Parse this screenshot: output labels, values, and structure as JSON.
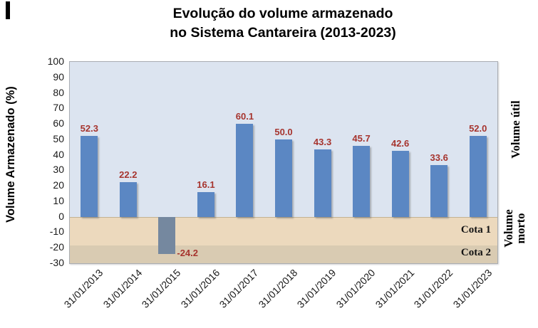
{
  "title": {
    "line1": "Evolução do volume armazenado",
    "line2": "no Sistema Cantareira (2013-2023)"
  },
  "y_axis": {
    "title": "Volume Armazenado (%)"
  },
  "right_labels": {
    "positive": "Volume útil",
    "negative_line1": "Volume",
    "negative_line2": "morto"
  },
  "chart_data": {
    "type": "bar",
    "title": "Evolução do volume armazenado no Sistema Cantareira (2013-2023)",
    "categories": [
      "31/01/2013",
      "31/01/2014",
      "31/01/2015",
      "31/01/2016",
      "31/01/2017",
      "31/01/2018",
      "31/01/2019",
      "31/01/2020",
      "31/01/2021",
      "31/01/2022",
      "31/01/2023"
    ],
    "values": [
      52.3,
      22.2,
      -24.2,
      16.1,
      60.1,
      50.0,
      43.3,
      45.7,
      42.6,
      33.6,
      52.0
    ],
    "xlabel": "",
    "ylabel": "Volume Armazenado (%)",
    "ylim": [
      -30,
      100
    ],
    "y_ticks": [
      100,
      90,
      80,
      70,
      60,
      50,
      40,
      30,
      20,
      10,
      0,
      -10,
      -20,
      -30
    ],
    "grid": false,
    "legend": false,
    "data_label_decimals": 1,
    "bands": [
      {
        "label": "Cota 1",
        "from": 0,
        "to": -18.5,
        "color": "#ecd9bd"
      },
      {
        "label": "Cota 2",
        "from": -18.5,
        "to": -30,
        "color": "#d9cbb2"
      }
    ],
    "region_annotations": [
      {
        "text": "Volume útil",
        "region": "positive"
      },
      {
        "text": "Volume morto",
        "region": "negative"
      }
    ],
    "colors": {
      "bar_positive": "#5b87c3",
      "bar_negative": "#75889f",
      "data_label": "#a6342e",
      "plot_bg_positive": "#dce4f0",
      "band_cota1": "#ecd9bd",
      "band_cota2": "#d9cbb2"
    }
  }
}
